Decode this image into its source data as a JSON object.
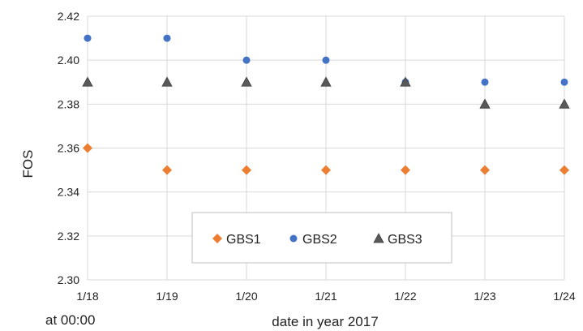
{
  "chart_data": {
    "type": "scatter",
    "x": [
      "1/18",
      "1/19",
      "1/20",
      "1/21",
      "1/22",
      "1/23",
      "1/24"
    ],
    "xlabel": "date in year 2017",
    "x_note": "at 00:00",
    "ylabel": "FOS",
    "ylim": [
      2.3,
      2.42
    ],
    "yticks": [
      "2.30",
      "2.32",
      "2.34",
      "2.36",
      "2.38",
      "2.40",
      "2.42"
    ],
    "grid": true,
    "legend_position": "bottom-center",
    "series": [
      {
        "name": "GBS1",
        "marker": "diamond",
        "color": "#ED7D31",
        "values": [
          2.36,
          2.35,
          2.35,
          2.35,
          2.35,
          2.35,
          2.35
        ]
      },
      {
        "name": "GBS2",
        "marker": "circle",
        "color": "#4472C4",
        "values": [
          2.41,
          2.41,
          2.4,
          2.4,
          2.39,
          2.39,
          2.39
        ]
      },
      {
        "name": "GBS3",
        "marker": "triangle",
        "color": "#595959",
        "values": [
          2.39,
          2.39,
          2.39,
          2.39,
          2.39,
          2.38,
          2.38
        ]
      }
    ]
  }
}
